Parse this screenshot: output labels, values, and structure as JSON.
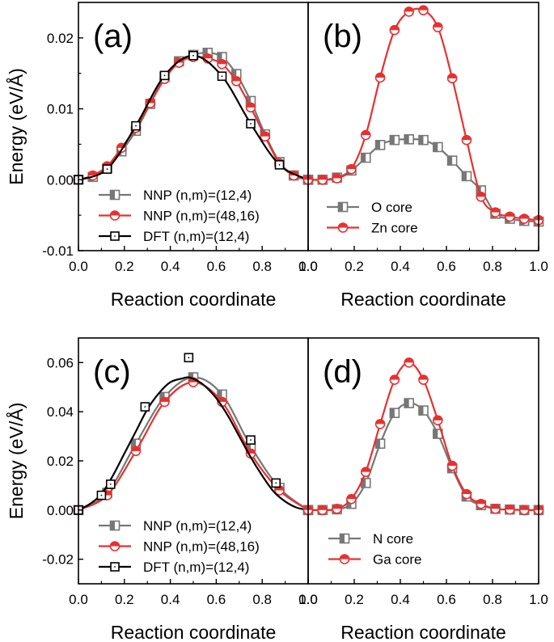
{
  "chart_data": [
    {
      "id": "a",
      "type": "line",
      "panel_label": "(a)",
      "ylabel": "Energy (eV/Å)",
      "xlabel": "Reaction coordinate",
      "xlim": [
        0,
        1
      ],
      "ylim": [
        -0.01,
        0.025
      ],
      "xticks": [
        "0.0",
        "0.2",
        "0.4",
        "0.6",
        "0.8",
        "1.0"
      ],
      "xtick_values": [
        0,
        0.2,
        0.4,
        0.6,
        0.8,
        1.0
      ],
      "xminor_values": [
        0.1,
        0.3,
        0.5,
        0.7,
        0.9
      ],
      "yticks": [
        "-0.01",
        "0.00",
        "0.01",
        "0.02"
      ],
      "ytick_values": [
        -0.01,
        0.0,
        0.01,
        0.02
      ],
      "legend": "bottom-left",
      "series": [
        {
          "name": "NNP (n,m)=(12,4)",
          "color": "#777777",
          "marker": "half-square",
          "x": [
            0,
            0.0625,
            0.125,
            0.1875,
            0.25,
            0.3125,
            0.375,
            0.4375,
            0.5,
            0.5625,
            0.625,
            0.6875,
            0.75,
            0.8125,
            0.875,
            0.9375,
            1.0
          ],
          "y": [
            0.0,
            0.0004,
            0.0016,
            0.004,
            0.0069,
            0.0107,
            0.0145,
            0.0167,
            0.0176,
            0.0179,
            0.0173,
            0.0149,
            0.0111,
            0.0064,
            0.0025,
            0.0006,
            0.0
          ]
        },
        {
          "name": "NNP (n,m)=(48,16)",
          "color": "#e83030",
          "marker": "half-circle",
          "x": [
            0,
            0.0625,
            0.125,
            0.1875,
            0.25,
            0.3125,
            0.375,
            0.4375,
            0.5,
            0.5625,
            0.625,
            0.6875,
            0.75,
            0.8125,
            0.875,
            0.9375,
            1.0
          ],
          "y": [
            0.0,
            0.0006,
            0.0019,
            0.0045,
            0.0073,
            0.0108,
            0.0142,
            0.0165,
            0.0173,
            0.0171,
            0.0163,
            0.0139,
            0.0102,
            0.0061,
            0.0023,
            0.0006,
            0.0
          ]
        },
        {
          "name": "DFT (n,m)=(12,4)",
          "color": "#000000",
          "marker": "open-square",
          "x": [
            0,
            0.125,
            0.25,
            0.375,
            0.5,
            0.625,
            0.75,
            0.875,
            1.0
          ],
          "y": [
            0.0,
            0.0015,
            0.0076,
            0.0147,
            0.0175,
            0.0146,
            0.0079,
            0.0021,
            0.0
          ]
        }
      ]
    },
    {
      "id": "b",
      "type": "line",
      "panel_label": "(b)",
      "xlabel": "Reaction coordinate",
      "xlim": [
        0,
        1
      ],
      "ylim": [
        -0.01,
        0.025
      ],
      "xticks": [
        "0.0",
        "0.2",
        "0.4",
        "0.6",
        "0.8",
        "1.0"
      ],
      "xtick_values": [
        0,
        0.2,
        0.4,
        0.6,
        0.8,
        1.0
      ],
      "xminor_values": [
        0.1,
        0.3,
        0.5,
        0.7,
        0.9
      ],
      "legend": "bottom-left",
      "series": [
        {
          "name": "O core",
          "color": "#777777",
          "marker": "half-square",
          "x": [
            0,
            0.0625,
            0.125,
            0.1875,
            0.25,
            0.3125,
            0.375,
            0.4375,
            0.5,
            0.5625,
            0.625,
            0.6875,
            0.75,
            0.8125,
            0.875,
            0.9375,
            1.0
          ],
          "y": [
            0.0,
            0.0,
            0.0003,
            0.0013,
            0.0031,
            0.0049,
            0.0056,
            0.0057,
            0.0056,
            0.0046,
            0.0027,
            0.0005,
            -0.0015,
            -0.0048,
            -0.0055,
            -0.0058,
            -0.0059
          ]
        },
        {
          "name": "Zn core",
          "color": "#e83030",
          "marker": "half-circle",
          "x": [
            0,
            0.0625,
            0.125,
            0.1875,
            0.25,
            0.3125,
            0.375,
            0.4375,
            0.5,
            0.5625,
            0.625,
            0.6875,
            0.75,
            0.8125,
            0.875,
            0.9375,
            1.0
          ],
          "y": [
            0.0,
            0.0,
            0.0002,
            0.0015,
            0.0063,
            0.0144,
            0.0211,
            0.0237,
            0.0239,
            0.0215,
            0.0143,
            0.0056,
            -0.0024,
            -0.0046,
            -0.0052,
            -0.0055,
            -0.0057
          ]
        }
      ]
    },
    {
      "id": "c",
      "type": "line",
      "panel_label": "(c)",
      "ylabel": "Energy (eV/Å)",
      "xlabel": "Reaction coordinate",
      "xlim": [
        0,
        1
      ],
      "ylim": [
        -0.03,
        0.07
      ],
      "xticks": [
        "0.0",
        "0.2",
        "0.4",
        "0.6",
        "0.8",
        "1.0"
      ],
      "xtick_values": [
        0,
        0.2,
        0.4,
        0.6,
        0.8,
        1.0
      ],
      "xminor_values": [
        0.1,
        0.3,
        0.5,
        0.7,
        0.9
      ],
      "yticks": [
        "-0.02",
        "0.00",
        "0.02",
        "0.04",
        "0.06"
      ],
      "ytick_values": [
        -0.02,
        0.0,
        0.02,
        0.04,
        0.06
      ],
      "legend": "bottom-left",
      "series": [
        {
          "name": "NNP (n,m)=(12,4)",
          "color": "#777777",
          "marker": "half-square",
          "x": [
            0,
            0.125,
            0.25,
            0.375,
            0.5,
            0.625,
            0.75,
            0.875,
            1.0
          ],
          "y": [
            0.0,
            0.007,
            0.027,
            0.046,
            0.054,
            0.047,
            0.026,
            0.009,
            0.0
          ]
        },
        {
          "name": "NNP (n,m)=(48,16)",
          "color": "#e83030",
          "marker": "half-circle",
          "x": [
            0,
            0.125,
            0.25,
            0.375,
            0.5,
            0.625,
            0.75,
            0.875,
            1.0
          ],
          "y": [
            0.0,
            0.006,
            0.024,
            0.044,
            0.052,
            0.044,
            0.023,
            0.008,
            0.0
          ]
        },
        {
          "name": "DFT (n,m)=(12,4)",
          "color": "#000000",
          "marker": "open-square",
          "x": [
            0,
            0.1,
            0.14,
            0.29,
            0.48,
            0.75,
            0.86,
            1.0
          ],
          "y": [
            0.0,
            0.006,
            0.0105,
            0.042,
            0.062,
            0.0285,
            0.011,
            0.0
          ],
          "curve_x": [
            0,
            0.05,
            0.1,
            0.15,
            0.2,
            0.25,
            0.3,
            0.35,
            0.4,
            0.45,
            0.48,
            0.52,
            0.55,
            0.6,
            0.65,
            0.7,
            0.75,
            0.8,
            0.85,
            0.9,
            0.95,
            1.0
          ],
          "curve_y": [
            0.0,
            0.0025,
            0.0065,
            0.014,
            0.023,
            0.032,
            0.041,
            0.0475,
            0.052,
            0.0535,
            0.054,
            0.0525,
            0.0505,
            0.0455,
            0.0385,
            0.03,
            0.0215,
            0.014,
            0.0075,
            0.0035,
            0.001,
            0.0
          ]
        }
      ]
    },
    {
      "id": "d",
      "type": "line",
      "panel_label": "(d)",
      "xlabel": "Reaction coordinate",
      "xlim": [
        0,
        1
      ],
      "ylim": [
        -0.03,
        0.07
      ],
      "xticks": [
        "0.0",
        "0.2",
        "0.4",
        "0.6",
        "0.8",
        "1.0"
      ],
      "xtick_values": [
        0,
        0.2,
        0.4,
        0.6,
        0.8,
        1.0
      ],
      "xminor_values": [
        0.1,
        0.3,
        0.5,
        0.7,
        0.9
      ],
      "legend": "bottom-left",
      "series": [
        {
          "name": "N core",
          "color": "#777777",
          "marker": "half-square",
          "x": [
            0,
            0.0625,
            0.125,
            0.1875,
            0.25,
            0.3125,
            0.375,
            0.4375,
            0.5,
            0.5625,
            0.625,
            0.6875,
            0.75,
            0.8125,
            0.875,
            0.9375,
            1.0
          ],
          "y": [
            0.0,
            0.0,
            0.0003,
            0.0025,
            0.011,
            0.027,
            0.0395,
            0.0435,
            0.0405,
            0.031,
            0.017,
            0.0055,
            0.002,
            0.0005,
            0.0002,
            0.0,
            0.0
          ]
        },
        {
          "name": "Ga core",
          "color": "#e83030",
          "marker": "half-circle",
          "x": [
            0,
            0.0625,
            0.125,
            0.1875,
            0.25,
            0.3125,
            0.375,
            0.4375,
            0.5,
            0.5625,
            0.625,
            0.6875,
            0.75,
            0.8125,
            0.875,
            0.9375,
            1.0
          ],
          "y": [
            0.0,
            0.0,
            0.0005,
            0.0045,
            0.0155,
            0.035,
            0.053,
            0.06,
            0.053,
            0.0365,
            0.018,
            0.0065,
            0.0025,
            0.0005,
            0.0002,
            0.0,
            0.0
          ]
        }
      ]
    }
  ]
}
